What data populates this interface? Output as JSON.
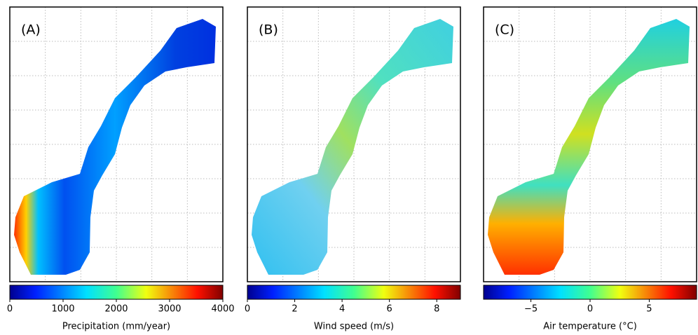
{
  "panels": [
    {
      "letter": "(A)",
      "colorbar": {
        "label": "Precipitation (mm/year)",
        "lim": [
          0,
          4000
        ],
        "ticks": [
          0,
          1000,
          2000,
          3000,
          4000
        ]
      }
    },
    {
      "letter": "(B)",
      "colorbar": {
        "label": "Wind speed (m/s)",
        "lim": [
          0,
          9
        ],
        "ticks": [
          0,
          2,
          4,
          6,
          8
        ]
      }
    },
    {
      "letter": "(C)",
      "colorbar": {
        "label": "Air temperature (°C)",
        "lim": [
          -9,
          9
        ],
        "ticks": [
          {
            "value": -5,
            "label": "−5"
          },
          0,
          5
        ]
      }
    }
  ]
}
